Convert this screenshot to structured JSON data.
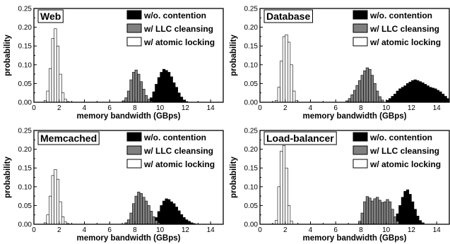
{
  "chart_data": [
    {
      "type": "bar",
      "title": "Web",
      "xlabel": "memory bandwidth (GBps)",
      "ylabel": "probability",
      "xlim": [
        0,
        15
      ],
      "ylim": [
        0,
        0.25
      ],
      "xticks": [
        0,
        2,
        4,
        6,
        8,
        10,
        12,
        14
      ],
      "yticks": [
        0.0,
        0.05,
        0.1,
        0.15,
        0.2,
        0.25
      ],
      "bin_width": 0.2,
      "legend_position": "top-right",
      "series": [
        {
          "name": "w/o. contention",
          "color": "#000000",
          "x": [
            9.0,
            9.2,
            9.4,
            9.6,
            9.8,
            10.0,
            10.2,
            10.4,
            10.6,
            10.8,
            11.0,
            11.2,
            11.4,
            11.6,
            11.8,
            12.0
          ],
          "values": [
            0.005,
            0.012,
            0.028,
            0.048,
            0.066,
            0.08,
            0.088,
            0.085,
            0.08,
            0.068,
            0.052,
            0.04,
            0.025,
            0.014,
            0.006,
            0.002
          ]
        },
        {
          "name": "w/ LLC cleansing",
          "color": "#808080",
          "x": [
            7.0,
            7.2,
            7.4,
            7.6,
            7.8,
            8.0,
            8.2,
            8.4,
            8.6,
            8.8,
            9.0,
            9.2
          ],
          "values": [
            0.004,
            0.012,
            0.03,
            0.06,
            0.08,
            0.086,
            0.075,
            0.055,
            0.035,
            0.018,
            0.008,
            0.003
          ]
        },
        {
          "name": "w/ atomic locking",
          "color": "#ffffff",
          "x": [
            0.8,
            1.0,
            1.2,
            1.4,
            1.6,
            1.8,
            2.0,
            2.2,
            2.4,
            2.6
          ],
          "values": [
            0.005,
            0.03,
            0.09,
            0.17,
            0.196,
            0.15,
            0.075,
            0.025,
            0.008,
            0.002
          ]
        }
      ]
    },
    {
      "type": "bar",
      "title": "Database",
      "xlabel": "memory bandwidth (GBps)",
      "ylabel": "probability",
      "xlim": [
        0,
        15
      ],
      "ylim": [
        0,
        0.25
      ],
      "xticks": [
        0,
        2,
        4,
        6,
        8,
        10,
        12,
        14
      ],
      "yticks": [
        0.0,
        0.05,
        0.1,
        0.15,
        0.2,
        0.25
      ],
      "bin_width": 0.2,
      "legend_position": "top-right",
      "series": [
        {
          "name": "w/o. contention",
          "color": "#000000",
          "x": [
            10.0,
            10.2,
            10.4,
            10.6,
            10.8,
            11.0,
            11.2,
            11.4,
            11.6,
            11.8,
            12.0,
            12.2,
            12.4,
            12.6,
            12.8,
            13.0,
            13.2,
            13.4,
            13.6,
            13.8,
            14.0,
            14.2,
            14.4,
            14.6,
            14.8
          ],
          "values": [
            0.005,
            0.01,
            0.016,
            0.022,
            0.03,
            0.036,
            0.04,
            0.044,
            0.05,
            0.054,
            0.058,
            0.06,
            0.058,
            0.055,
            0.052,
            0.048,
            0.044,
            0.04,
            0.038,
            0.036,
            0.032,
            0.028,
            0.022,
            0.016,
            0.01
          ]
        },
        {
          "name": "w/ LLC cleansing",
          "color": "#808080",
          "x": [
            6.8,
            7.0,
            7.2,
            7.4,
            7.6,
            7.8,
            8.0,
            8.2,
            8.4,
            8.6,
            8.8,
            9.0,
            9.2,
            9.4,
            9.6
          ],
          "values": [
            0.004,
            0.01,
            0.02,
            0.032,
            0.045,
            0.058,
            0.072,
            0.084,
            0.092,
            0.088,
            0.072,
            0.05,
            0.03,
            0.015,
            0.006
          ]
        },
        {
          "name": "w/ atomic locking",
          "color": "#ffffff",
          "x": [
            1.2,
            1.4,
            1.6,
            1.8,
            2.0,
            2.2,
            2.4,
            2.6,
            2.8
          ],
          "values": [
            0.005,
            0.04,
            0.11,
            0.175,
            0.18,
            0.16,
            0.1,
            0.03,
            0.005
          ]
        }
      ]
    },
    {
      "type": "bar",
      "title": "Memcached",
      "xlabel": "memory bandwidth (GBps)",
      "ylabel": "probability",
      "xlim": [
        0,
        15
      ],
      "ylim": [
        0,
        0.25
      ],
      "xticks": [
        0,
        2,
        4,
        6,
        8,
        10,
        12,
        14
      ],
      "yticks": [
        0.0,
        0.05,
        0.1,
        0.15,
        0.2,
        0.25
      ],
      "bin_width": 0.2,
      "legend_position": "top-right",
      "series": [
        {
          "name": "w/o. contention",
          "color": "#000000",
          "x": [
            9.4,
            9.6,
            9.8,
            10.0,
            10.2,
            10.4,
            10.6,
            10.8,
            11.0,
            11.2,
            11.4,
            11.6,
            11.8,
            12.0,
            12.2,
            12.4,
            12.6
          ],
          "values": [
            0.006,
            0.018,
            0.034,
            0.05,
            0.062,
            0.068,
            0.066,
            0.06,
            0.055,
            0.046,
            0.036,
            0.026,
            0.018,
            0.012,
            0.008,
            0.004,
            0.002
          ]
        },
        {
          "name": "w/ LLC cleansing",
          "color": "#808080",
          "x": [
            7.2,
            7.4,
            7.6,
            7.8,
            8.0,
            8.2,
            8.4,
            8.6,
            8.8,
            9.0,
            9.2,
            9.4,
            9.6,
            9.8
          ],
          "values": [
            0.004,
            0.012,
            0.03,
            0.055,
            0.075,
            0.086,
            0.082,
            0.072,
            0.062,
            0.05,
            0.035,
            0.02,
            0.01,
            0.004
          ]
        },
        {
          "name": "w/ atomic locking",
          "color": "#ffffff",
          "x": [
            0.8,
            1.0,
            1.2,
            1.4,
            1.6,
            1.8,
            2.0,
            2.2,
            2.4,
            2.6
          ],
          "values": [
            0.004,
            0.025,
            0.075,
            0.13,
            0.146,
            0.12,
            0.06,
            0.02,
            0.006,
            0.002
          ]
        }
      ]
    },
    {
      "type": "bar",
      "title": "Load-balancer",
      "xlabel": "memory bandwidth (GBps)",
      "ylabel": "probability",
      "xlim": [
        0,
        15
      ],
      "ylim": [
        0,
        0.25
      ],
      "xticks": [
        0,
        2,
        4,
        6,
        8,
        10,
        12,
        14
      ],
      "yticks": [
        0.0,
        0.05,
        0.1,
        0.15,
        0.2,
        0.25
      ],
      "bin_width": 0.2,
      "legend_position": "top-right",
      "series": [
        {
          "name": "w/o. contention",
          "color": "#000000",
          "x": [
            10.4,
            10.6,
            10.8,
            11.0,
            11.2,
            11.4,
            11.6,
            11.8,
            12.0,
            12.2,
            12.4,
            12.6,
            12.8
          ],
          "values": [
            0.004,
            0.012,
            0.028,
            0.05,
            0.072,
            0.088,
            0.092,
            0.08,
            0.06,
            0.04,
            0.022,
            0.01,
            0.004
          ]
        },
        {
          "name": "w/ LLC cleansing",
          "color": "#808080",
          "x": [
            7.8,
            8.0,
            8.2,
            8.4,
            8.6,
            8.8,
            9.0,
            9.2,
            9.4,
            9.6,
            9.8,
            10.0,
            10.2,
            10.4,
            10.6,
            10.8
          ],
          "values": [
            0.008,
            0.03,
            0.06,
            0.074,
            0.07,
            0.062,
            0.068,
            0.072,
            0.064,
            0.058,
            0.06,
            0.066,
            0.06,
            0.04,
            0.02,
            0.008
          ]
        },
        {
          "name": "w/ atomic locking",
          "color": "#ffffff",
          "x": [
            1.2,
            1.4,
            1.6,
            1.8,
            2.0,
            2.2,
            2.4
          ],
          "values": [
            0.01,
            0.1,
            0.195,
            0.21,
            0.15,
            0.05,
            0.008
          ]
        }
      ]
    }
  ]
}
